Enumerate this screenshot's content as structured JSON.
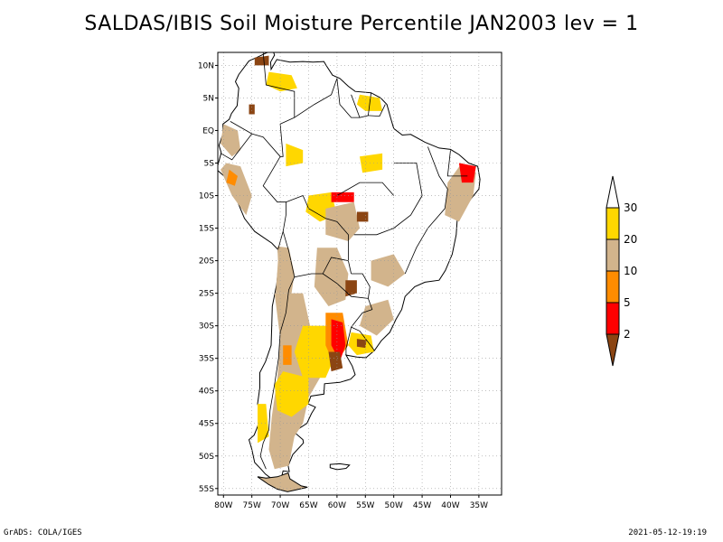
{
  "title": "SALDAS/IBIS Soil Moisture Percentile JAN2003 lev = 1",
  "footer": {
    "left": "GrADS: COLA/IGES",
    "right": "2021-05-12-19:19"
  },
  "map": {
    "lon_range": [
      -81,
      -31
    ],
    "lat_range": [
      -56,
      12
    ],
    "lon_ticks": [
      {
        "lon": -80,
        "label": "80W"
      },
      {
        "lon": -75,
        "label": "75W"
      },
      {
        "lon": -70,
        "label": "70W"
      },
      {
        "lon": -65,
        "label": "65W"
      },
      {
        "lon": -60,
        "label": "60W"
      },
      {
        "lon": -55,
        "label": "55W"
      },
      {
        "lon": -50,
        "label": "50W"
      },
      {
        "lon": -45,
        "label": "45W"
      },
      {
        "lon": -40,
        "label": "40W"
      },
      {
        "lon": -35,
        "label": "35W"
      }
    ],
    "lat_ticks": [
      {
        "lat": 10,
        "label": "10N"
      },
      {
        "lat": 5,
        "label": "5N"
      },
      {
        "lat": 0,
        "label": "EQ"
      },
      {
        "lat": -5,
        "label": "5S"
      },
      {
        "lat": -10,
        "label": "10S"
      },
      {
        "lat": -15,
        "label": "15S"
      },
      {
        "lat": -20,
        "label": "20S"
      },
      {
        "lat": -25,
        "label": "25S"
      },
      {
        "lat": -30,
        "label": "30S"
      },
      {
        "lat": -35,
        "label": "35S"
      },
      {
        "lat": -40,
        "label": "40S"
      },
      {
        "lat": -45,
        "label": "45S"
      },
      {
        "lat": -50,
        "label": "50S"
      },
      {
        "lat": -55,
        "label": "55S"
      }
    ],
    "gridlines": "dotted"
  },
  "legend": {
    "placement": "right",
    "bins": [
      {
        "color": "#ffffff",
        "range": "> 30"
      },
      {
        "color": "#ffd700",
        "range": "20-30"
      },
      {
        "color": "#d2b48c",
        "range": "10-20"
      },
      {
        "color": "#ff8c00",
        "range": "5-10"
      },
      {
        "color": "#ff0000",
        "range": "2-5"
      },
      {
        "color": "#8b4513",
        "range": "< 2"
      }
    ],
    "labels": [
      "30",
      "20",
      "10",
      "5",
      "2"
    ]
  },
  "colors": {
    "white": "#ffffff",
    "gold": "#ffd700",
    "tan": "#d2b48c",
    "orange": "#ff8c00",
    "red": "#ff0000",
    "brown": "#8b4513",
    "sea": "#ffffff"
  }
}
